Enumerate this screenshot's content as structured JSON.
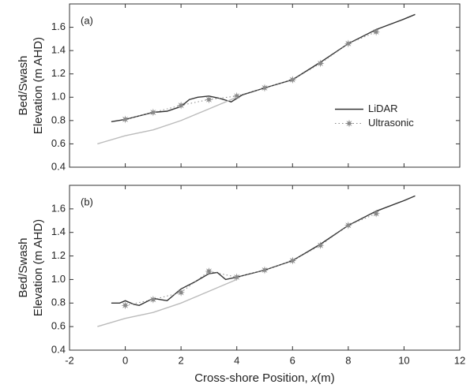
{
  "chart_data": [
    {
      "type": "line",
      "label": "(a)",
      "ylabel": [
        "Bed/Swash",
        "Elevation (m AHD)"
      ],
      "xlim": [
        -2,
        12
      ],
      "xticks": [
        -2,
        0,
        2,
        4,
        6,
        8,
        10,
        12
      ],
      "xtick_labels": false,
      "ylim": [
        0.4,
        1.8
      ],
      "yticks": [
        0.4,
        0.6,
        0.8,
        {
          "value": 1,
          "label": "1.0"
        },
        1.2,
        1.4,
        1.6
      ],
      "legend": "right",
      "series": [
        {
          "name": "LiDAR",
          "color": "#333333",
          "style": "solid",
          "x": [
            -0.5,
            0,
            0.5,
            1,
            1.5,
            2,
            2.3,
            2.6,
            3,
            3.4,
            3.8,
            4.2,
            5,
            6,
            7,
            8,
            9,
            10,
            10.4
          ],
          "values": [
            0.79,
            0.81,
            0.84,
            0.87,
            0.88,
            0.92,
            0.98,
            1.0,
            1.01,
            0.99,
            0.96,
            1.02,
            1.08,
            1.15,
            1.3,
            1.46,
            1.58,
            1.67,
            1.71
          ]
        },
        {
          "name": "Ultrasonic",
          "color": "#888888",
          "style": "dotted-marker",
          "x": [
            0,
            1,
            2,
            3,
            4,
            5,
            6,
            7,
            8,
            9
          ],
          "values": [
            0.81,
            0.87,
            0.93,
            0.98,
            1.01,
            1.08,
            1.15,
            1.29,
            1.46,
            1.56
          ]
        },
        {
          "color": "#bbbbbb",
          "style": "solid",
          "x": [
            -1,
            0,
            1,
            2,
            3,
            4
          ],
          "values": [
            0.6,
            0.67,
            0.72,
            0.8,
            0.9,
            1.0
          ]
        }
      ]
    },
    {
      "type": "line",
      "label": "(b)",
      "ylabel": [
        "Bed/Swash",
        "Elevation (m AHD)"
      ],
      "xlabel": [
        "Cross-shore Position, ",
        "x",
        "(m)"
      ],
      "xlim": [
        -2,
        12
      ],
      "xticks": [
        -2,
        0,
        2,
        4,
        6,
        8,
        10,
        12
      ],
      "xtick_labels": true,
      "ylim": [
        0.4,
        1.8
      ],
      "yticks": [
        0.4,
        0.6,
        0.8,
        {
          "value": 1,
          "label": "1.0"
        },
        1.2,
        1.4,
        1.6
      ],
      "series": [
        {
          "color": "#333333",
          "style": "solid",
          "x": [
            -0.5,
            -0.2,
            0,
            0.3,
            0.5,
            1,
            1.5,
            2,
            2.5,
            3,
            3.3,
            3.6,
            4,
            5,
            6,
            7,
            8,
            9,
            10,
            10.4
          ],
          "values": [
            0.8,
            0.8,
            0.82,
            0.79,
            0.78,
            0.84,
            0.82,
            0.92,
            0.98,
            1.05,
            1.06,
            1.0,
            1.02,
            1.08,
            1.16,
            1.3,
            1.46,
            1.58,
            1.67,
            1.71
          ]
        },
        {
          "color": "#888888",
          "style": "dotted-marker",
          "x": [
            0,
            1,
            2,
            3,
            4,
            5,
            6,
            7,
            8,
            9
          ],
          "values": [
            0.78,
            0.83,
            0.89,
            1.07,
            1.02,
            1.08,
            1.16,
            1.29,
            1.46,
            1.56
          ]
        },
        {
          "color": "#bbbbbb",
          "style": "solid",
          "x": [
            -1,
            0,
            1,
            2,
            3,
            4
          ],
          "values": [
            0.6,
            0.67,
            0.72,
            0.8,
            0.9,
            1.0
          ]
        }
      ]
    }
  ]
}
